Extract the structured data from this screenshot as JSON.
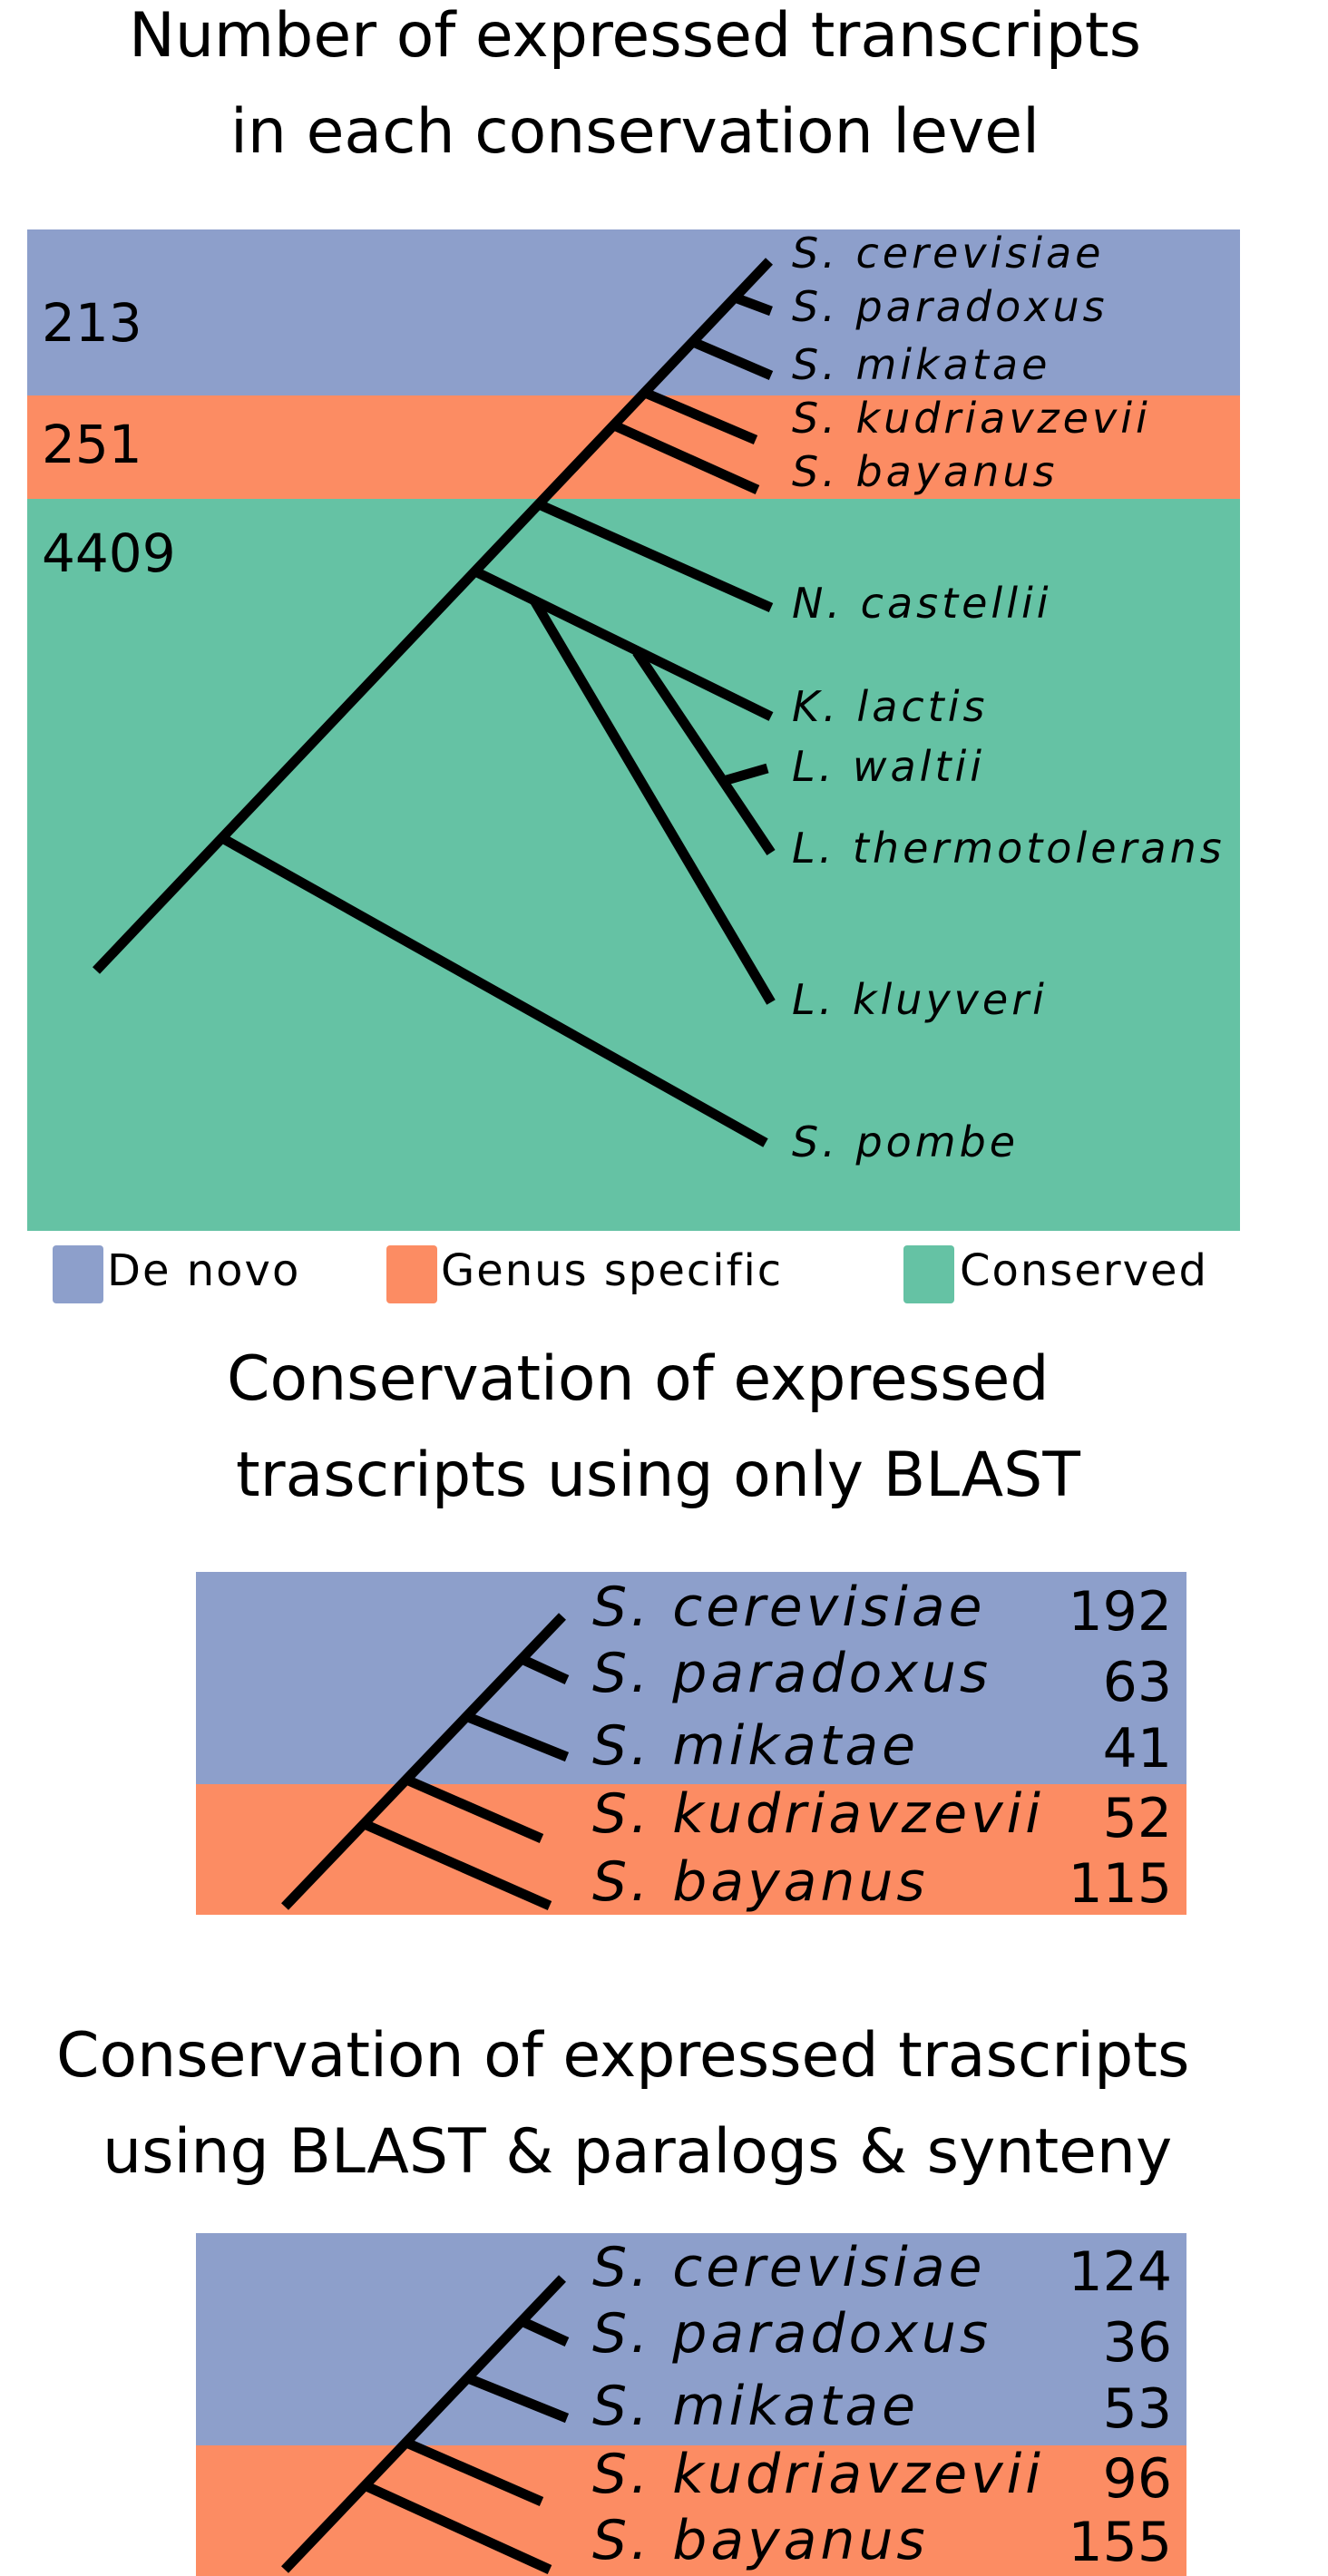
{
  "colors": {
    "de_novo": "#8d9fcb",
    "genus_specific": "#fc8c63",
    "conserved": "#65c2a4",
    "tree": "#000000"
  },
  "panel1": {
    "title_line1": "Number of expressed transcripts",
    "title_line2": "in each conservation level",
    "counts": {
      "de_novo": "213",
      "genus_specific": "251",
      "conserved": "4409"
    },
    "species": [
      "S. cerevisiae",
      "S. paradoxus",
      "S. mikatae",
      "S. kudriavzevii",
      "S. bayanus",
      "N. castellii",
      "K. lactis",
      "L. waltii",
      "L. thermotolerans",
      "L. kluyveri",
      "S. pombe"
    ]
  },
  "legend": {
    "de_novo": "De novo",
    "genus_specific": "Genus specific",
    "conserved": "Conserved"
  },
  "panel2": {
    "title_line1": "Conservation of expressed",
    "title_line2": "trascripts using only BLAST",
    "rows": [
      {
        "species": "S. cerevisiae",
        "count": "192"
      },
      {
        "species": "S. paradoxus",
        "count": "63"
      },
      {
        "species": "S. mikatae",
        "count": "41"
      },
      {
        "species": "S. kudriavzevii",
        "count": "52"
      },
      {
        "species": "S. bayanus",
        "count": "115"
      }
    ]
  },
  "panel3": {
    "title_line1": "Conservation of expressed trascripts",
    "title_line2": "using BLAST & paralogs & synteny",
    "rows": [
      {
        "species": "S. cerevisiae",
        "count": "124"
      },
      {
        "species": "S. paradoxus",
        "count": "36"
      },
      {
        "species": "S. mikatae",
        "count": "53"
      },
      {
        "species": "S. kudriavzevii",
        "count": "96"
      },
      {
        "species": "S. bayanus",
        "count": "155"
      }
    ]
  }
}
